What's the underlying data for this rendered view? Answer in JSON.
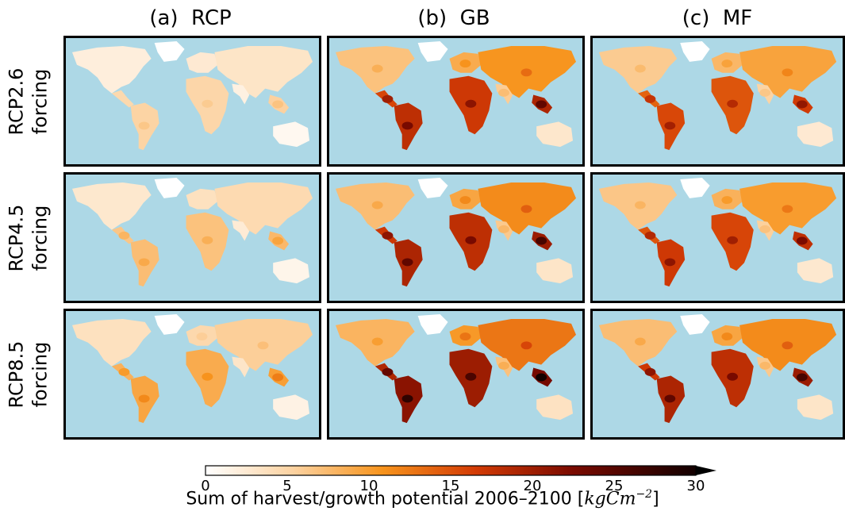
{
  "columns": [
    {
      "id": "rcp",
      "title": "(a)  RCP"
    },
    {
      "id": "gb",
      "title": "(b)  GB"
    },
    {
      "id": "mf",
      "title": "(c)  MF"
    }
  ],
  "rows": [
    {
      "id": "rcp26",
      "line1": "RCP2.6",
      "line2": "forcing"
    },
    {
      "id": "rcp45",
      "line1": "RCP4.5",
      "line2": "forcing"
    },
    {
      "id": "rcp85",
      "line1": "RCP8.5",
      "line2": "forcing"
    }
  ],
  "colorbar": {
    "ticks": [
      "0",
      "5",
      "10",
      "15",
      "20",
      "25",
      "30"
    ],
    "caption_text": "Sum of harvest/growth potential 2006–2100 [",
    "caption_unit": "kgCm",
    "caption_exp": "−2",
    "caption_close": "]",
    "extend": "max"
  },
  "colors": {
    "ocean": "#add8e6",
    "land_low": "#ffffff",
    "mid": "#f08a30",
    "high": "#7a0a00",
    "max": "#000000"
  },
  "chart_data": {
    "type": "heatmap",
    "subtype": "global map grid, 3x3 panels",
    "vmin": 0,
    "vmax": 30,
    "colormap": "gist_heat_r (white-orange-red-black)",
    "panel_intensity_scale": {
      "rcp": [
        0.25,
        0.35,
        0.45
      ],
      "gb": [
        0.85,
        0.9,
        1.0
      ],
      "mf": [
        0.75,
        0.8,
        0.9
      ]
    }
  }
}
